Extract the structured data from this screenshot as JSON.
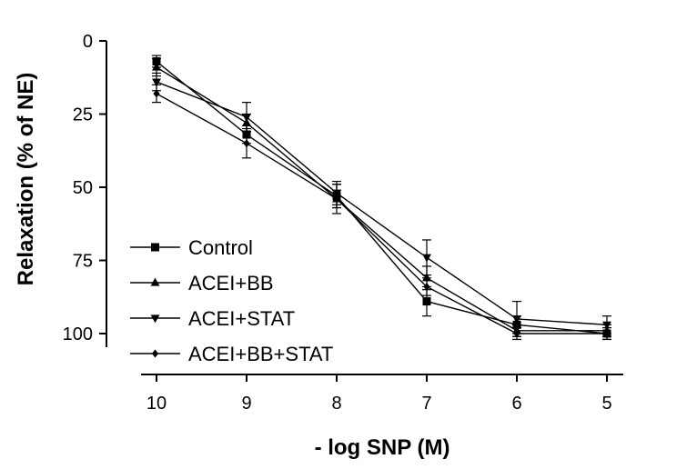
{
  "chart_data": {
    "type": "line",
    "title": "",
    "xlabel": "- log SNP (M)",
    "ylabel": "Relaxation (% of NE)",
    "x": [
      10,
      9,
      8,
      7,
      6,
      5
    ],
    "xlim": [
      10,
      5
    ],
    "xticks": [
      "10",
      "9",
      "8",
      "7",
      "6",
      "5"
    ],
    "ylim": [
      0,
      100
    ],
    "y_inverted": true,
    "yticks": [
      "0",
      "25",
      "50",
      "75",
      "100"
    ],
    "grid": false,
    "legend_position": "bottom-left",
    "series": [
      {
        "name": "Control",
        "marker": "square",
        "values": [
          7,
          32,
          53,
          89,
          97,
          100
        ],
        "errors": [
          2,
          3,
          4,
          5,
          3,
          2
        ]
      },
      {
        "name": "ACEI+BB",
        "marker": "triangle-up",
        "values": [
          9,
          28,
          54,
          81,
          99,
          99
        ],
        "errors": [
          3,
          3,
          3,
          4,
          2,
          2
        ]
      },
      {
        "name": "ACEI+STAT",
        "marker": "triangle-down",
        "values": [
          14,
          26,
          52,
          74,
          95,
          97
        ],
        "errors": [
          3,
          5,
          4,
          6,
          6,
          3
        ]
      },
      {
        "name": "ACEI+BB+STAT",
        "marker": "diamond",
        "values": [
          18,
          35,
          54,
          84,
          100,
          100
        ],
        "errors": [
          3,
          5,
          5,
          3,
          2,
          2
        ]
      }
    ]
  }
}
